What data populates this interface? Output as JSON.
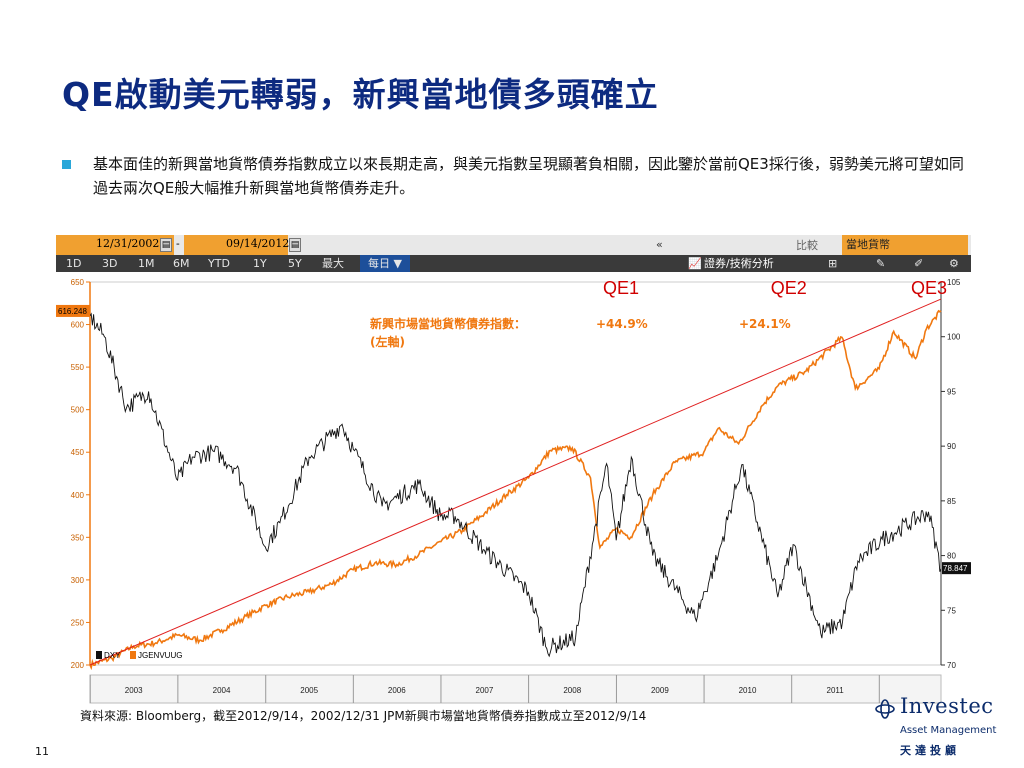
{
  "slide": {
    "title": "QE啟動美元轉弱，新興當地債多頭確立",
    "bullet": "基本面佳的新興當地貨幣債券指數成立以來長期走高，與美元指數呈現顯著負相關，因此鑒於當前QE3採行後，弱勢美元將可望如同過去兩次QE般大幅推升新興當地貨幣債券走升。",
    "source": "資料來源: Bloomberg，截至2012/9/14，2002/12/31 JPM新興市場當地貨幣債券指數成立至2012/9/14",
    "page_number": "11"
  },
  "terminal": {
    "start_date": "12/31/2002",
    "dash": "-",
    "end_date": "09/14/2012",
    "collapse": "«",
    "compare": "比較",
    "local_currency": "當地貨幣",
    "ranges": [
      "1D",
      "3D",
      "1M",
      "6M",
      "YTD",
      "1Y",
      "5Y",
      "最大"
    ],
    "frequency": "每日 ▼",
    "tech_analysis": "證券/技術分析"
  },
  "logo": {
    "name": "Investec",
    "sub": "Asset Management",
    "cn": "天達投顧"
  },
  "colors": {
    "title": "#0d2a80",
    "bullet_square": "#2aa7d9",
    "em_series": "#f07810",
    "dxy_series": "#111111",
    "trend_line": "#e02020",
    "qe_band": "#fffac8",
    "qe_label": "#d00000"
  },
  "chart_data": {
    "type": "line",
    "title": "",
    "x_range": [
      "2002-12-31",
      "2012-09-14"
    ],
    "x_ticks": [
      "2003",
      "2004",
      "2005",
      "2006",
      "2007",
      "2008",
      "2009",
      "2010",
      "2011"
    ],
    "left_axis": {
      "ylim": [
        200,
        650
      ],
      "ticks": [
        200,
        250,
        300,
        350,
        400,
        450,
        500,
        550,
        600,
        650
      ]
    },
    "right_axis": {
      "ylim": [
        70,
        105
      ],
      "ticks": [
        70,
        75,
        80,
        85,
        90,
        95,
        100,
        105
      ]
    },
    "legend": [
      {
        "name": "DXY",
        "color": "#111111"
      },
      {
        "name": "JGENVUUG",
        "color": "#f07810"
      }
    ],
    "last_values": {
      "JGENVUUG": "616.248",
      "DXY": "78.847"
    },
    "annotations": {
      "em_label": "新興市場當地貨幣債券指數：",
      "em_label_2": "(左軸)",
      "qe1_gain": "+44.9%",
      "qe2_gain": "+24.1%"
    },
    "qe_periods": [
      {
        "label": "QE1",
        "start": "2008-11-25",
        "end": "2010-03-31"
      },
      {
        "label": "QE2",
        "start": "2010-11-03",
        "end": "2011-06-30"
      },
      {
        "label": "QE3",
        "start": "2012-09-13",
        "end": "2012-09-14"
      }
    ],
    "series": [
      {
        "name": "JGENVUUG",
        "axis": "left",
        "points": [
          [
            "2002-12-31",
            200
          ],
          [
            "2003-04-01",
            208
          ],
          [
            "2003-07-01",
            222
          ],
          [
            "2003-10-01",
            226
          ],
          [
            "2004-01-01",
            235
          ],
          [
            "2004-04-01",
            229
          ],
          [
            "2004-07-01",
            241
          ],
          [
            "2004-10-01",
            255
          ],
          [
            "2005-01-01",
            270
          ],
          [
            "2005-04-01",
            280
          ],
          [
            "2005-07-01",
            286
          ],
          [
            "2005-10-01",
            295
          ],
          [
            "2006-01-01",
            312
          ],
          [
            "2006-04-01",
            320
          ],
          [
            "2006-07-01",
            318
          ],
          [
            "2006-10-01",
            330
          ],
          [
            "2007-01-01",
            345
          ],
          [
            "2007-04-01",
            358
          ],
          [
            "2007-07-01",
            378
          ],
          [
            "2007-10-01",
            400
          ],
          [
            "2008-01-01",
            420
          ],
          [
            "2008-04-01",
            452
          ],
          [
            "2008-07-01",
            455
          ],
          [
            "2008-09-15",
            420
          ],
          [
            "2008-10-24",
            338
          ],
          [
            "2008-12-31",
            360
          ],
          [
            "2009-03-01",
            350
          ],
          [
            "2009-06-01",
            400
          ],
          [
            "2009-09-01",
            438
          ],
          [
            "2009-12-31",
            450
          ],
          [
            "2010-03-01",
            478
          ],
          [
            "2010-05-25",
            460
          ],
          [
            "2010-09-01",
            505
          ],
          [
            "2010-11-05",
            528
          ],
          [
            "2011-03-01",
            545
          ],
          [
            "2011-07-29",
            585
          ],
          [
            "2011-09-23",
            525
          ],
          [
            "2011-12-31",
            548
          ],
          [
            "2012-03-01",
            592
          ],
          [
            "2012-05-31",
            560
          ],
          [
            "2012-07-15",
            595
          ],
          [
            "2012-09-14",
            616
          ]
        ]
      },
      {
        "name": "DXY",
        "axis": "right",
        "points": [
          [
            "2002-12-31",
            101.9
          ],
          [
            "2003-03-01",
            100
          ],
          [
            "2003-06-01",
            93.5
          ],
          [
            "2003-09-01",
            95
          ],
          [
            "2003-12-31",
            86.9
          ],
          [
            "2004-03-01",
            89
          ],
          [
            "2004-06-01",
            89.5
          ],
          [
            "2004-09-01",
            88
          ],
          [
            "2004-12-30",
            80.8
          ],
          [
            "2005-03-01",
            83
          ],
          [
            "2005-07-01",
            89
          ],
          [
            "2005-11-15",
            92
          ],
          [
            "2006-01-01",
            89.7
          ],
          [
            "2006-05-01",
            84.5
          ],
          [
            "2006-10-01",
            86.5
          ],
          [
            "2006-12-31",
            83.6
          ],
          [
            "2007-03-01",
            83.6
          ],
          [
            "2007-07-01",
            80.5
          ],
          [
            "2007-12-31",
            76.7
          ],
          [
            "2008-03-17",
            71.5
          ],
          [
            "2008-07-15",
            72.5
          ],
          [
            "2008-11-21",
            88.4
          ],
          [
            "2008-12-31",
            81.4
          ],
          [
            "2009-03-04",
            89
          ],
          [
            "2009-06-01",
            80
          ],
          [
            "2009-11-25",
            74.3
          ],
          [
            "2010-03-01",
            80
          ],
          [
            "2010-06-07",
            88.3
          ],
          [
            "2010-11-04",
            76.2
          ],
          [
            "2011-01-07",
            81
          ],
          [
            "2011-05-02",
            72.9
          ],
          [
            "2011-08-01",
            74
          ],
          [
            "2011-10-04",
            79.5
          ],
          [
            "2012-01-13",
            81.5
          ],
          [
            "2012-07-24",
            84
          ],
          [
            "2012-09-14",
            78.8
          ]
        ]
      }
    ],
    "trend_line": {
      "from": [
        "2002-12-31",
        200
      ],
      "to": [
        "2012-09-14",
        630
      ]
    }
  }
}
